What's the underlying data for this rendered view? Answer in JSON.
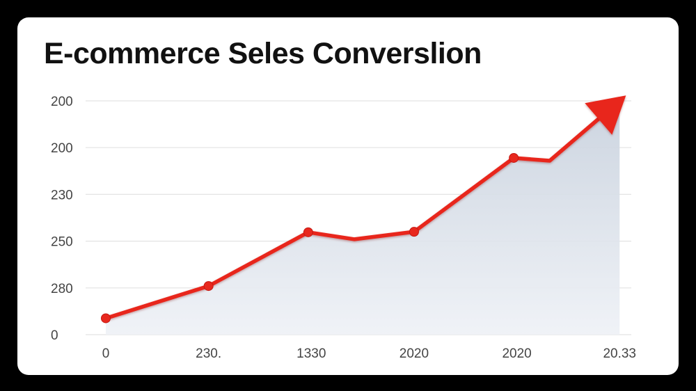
{
  "chart_data": {
    "type": "line",
    "title": "E-commerce Seles Converslion",
    "xlabel": "",
    "ylabel": "",
    "x_tick_labels": [
      "0",
      "230.",
      "1330",
      "2020",
      "2020",
      "20.33"
    ],
    "y_tick_labels": [
      "0",
      "280",
      "250",
      "230",
      "200",
      "200"
    ],
    "y_tick_positions": [
      0,
      1,
      2,
      3,
      4,
      5
    ],
    "x_tick_positions": [
      0,
      1,
      2,
      3,
      4,
      5
    ],
    "xlim": [
      0,
      5.1
    ],
    "ylim": [
      0,
      5
    ],
    "grid": true,
    "legend": "none",
    "series": [
      {
        "x": [
          0,
          1,
          1.97,
          2.42,
          3,
          3.97,
          4.32,
          5.0
        ],
        "y": [
          0.35,
          1.04,
          2.19,
          2.04,
          2.2,
          3.78,
          3.72,
          5.0
        ],
        "markers": [
          true,
          true,
          true,
          false,
          true,
          true,
          false,
          false
        ],
        "ends_with_arrow": true
      }
    ],
    "colors": {
      "line": "#e8281e",
      "area": "#dde3ec",
      "grid": "#e3e3e3"
    }
  }
}
